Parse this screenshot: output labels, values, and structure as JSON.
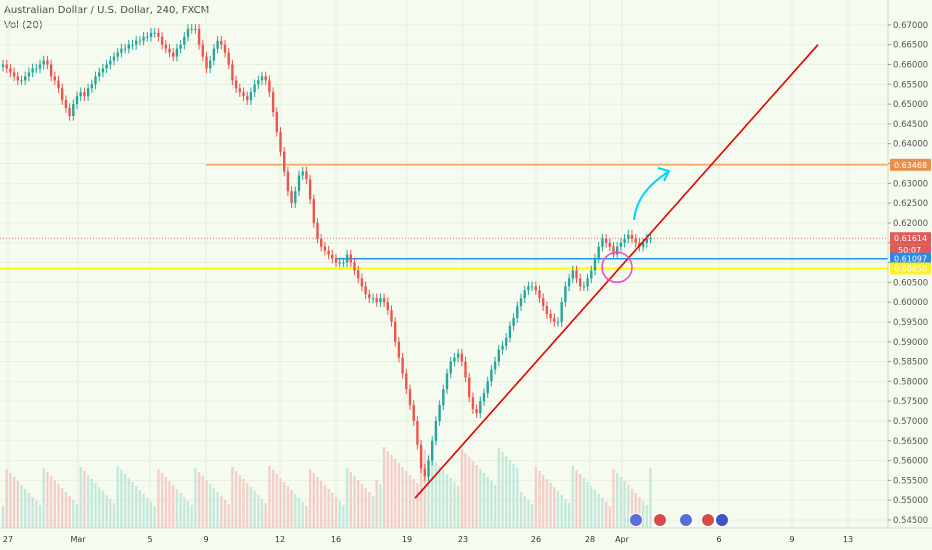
{
  "header": {
    "title": "Australian Dollar / U.S. Dollar, 240, FXCM",
    "volume_label": "Vol (20)"
  },
  "colors": {
    "background": "#f6fbf0",
    "bullish": "#26a69a",
    "bearish": "#ef5350",
    "trendline": "#e00000",
    "resistance": "#f4a460",
    "support_yellow": "#ffff00",
    "support_blue": "#2196f3",
    "current_price": "#e57373",
    "arrow": "#00d4ff",
    "circle": "#ee44cc"
  },
  "price_axis": {
    "ticks": [
      "0.67000",
      "0.66500",
      "0.66000",
      "0.65500",
      "0.65000",
      "0.64500",
      "0.64000",
      "0.63500",
      "0.63000",
      "0.62500",
      "0.62000",
      "0.61500",
      "0.61000",
      "0.60500",
      "0.60000",
      "0.59500",
      "0.59000",
      "0.58500",
      "0.58000",
      "0.57500",
      "0.57000",
      "0.56500",
      "0.56000",
      "0.55500",
      "0.55000",
      "0.54500"
    ]
  },
  "price_badges": {
    "resistance": "0.63468",
    "current_price": "0.61614",
    "countdown": "50:07",
    "blue_level": "0.61097",
    "yellow_level": "0.60850"
  },
  "time_axis": {
    "labels": [
      "27",
      "Mar",
      "5",
      "9",
      "12",
      "16",
      "19",
      "23",
      "26",
      "28",
      "Apr",
      "6",
      "9",
      "13"
    ]
  },
  "chart_data": {
    "type": "candlestick",
    "symbol": "Australian Dollar / U.S. Dollar",
    "timeframe": "240",
    "source": "FXCM",
    "ylim": [
      0.545,
      0.6725
    ],
    "horizontal_levels": [
      {
        "name": "resistance",
        "value": 0.63468
      },
      {
        "name": "current",
        "value": 0.61614
      },
      {
        "name": "blue",
        "value": 0.61097
      },
      {
        "name": "yellow",
        "value": 0.6085
      }
    ],
    "trendline": {
      "from": {
        "date": "19 Mar",
        "price": 0.5505
      },
      "to": {
        "date": "11 Apr",
        "price": 0.665
      }
    },
    "series_close": [
      0.66,
      0.659,
      0.658,
      0.657,
      0.656,
      0.656,
      0.657,
      0.658,
      0.659,
      0.659,
      0.66,
      0.661,
      0.66,
      0.657,
      0.656,
      0.654,
      0.651,
      0.649,
      0.647,
      0.65,
      0.652,
      0.653,
      0.652,
      0.654,
      0.655,
      0.657,
      0.658,
      0.659,
      0.66,
      0.661,
      0.662,
      0.663,
      0.664,
      0.664,
      0.665,
      0.665,
      0.666,
      0.666,
      0.667,
      0.667,
      0.668,
      0.668,
      0.667,
      0.665,
      0.664,
      0.663,
      0.662,
      0.664,
      0.665,
      0.667,
      0.669,
      0.669,
      0.669,
      0.665,
      0.662,
      0.659,
      0.661,
      0.664,
      0.666,
      0.665,
      0.663,
      0.66,
      0.656,
      0.654,
      0.653,
      0.652,
      0.651,
      0.653,
      0.655,
      0.656,
      0.657,
      0.656,
      0.653,
      0.648,
      0.643,
      0.638,
      0.633,
      0.628,
      0.625,
      0.628,
      0.632,
      0.633,
      0.631,
      0.626,
      0.62,
      0.616,
      0.614,
      0.613,
      0.612,
      0.611,
      0.61,
      0.61,
      0.61,
      0.612,
      0.61,
      0.608,
      0.606,
      0.604,
      0.602,
      0.601,
      0.601,
      0.6,
      0.601,
      0.6,
      0.598,
      0.595,
      0.59,
      0.586,
      0.582,
      0.578,
      0.574,
      0.57,
      0.564,
      0.558,
      0.556,
      0.56,
      0.565,
      0.57,
      0.574,
      0.578,
      0.582,
      0.585,
      0.586,
      0.587,
      0.585,
      0.581,
      0.576,
      0.573,
      0.572,
      0.575,
      0.577,
      0.58,
      0.583,
      0.585,
      0.588,
      0.589,
      0.591,
      0.594,
      0.596,
      0.599,
      0.601,
      0.603,
      0.604,
      0.604,
      0.603,
      0.601,
      0.599,
      0.597,
      0.596,
      0.595,
      0.595,
      0.6,
      0.604,
      0.606,
      0.608,
      0.606,
      0.604,
      0.604,
      0.606,
      0.608,
      0.611,
      0.614,
      0.616,
      0.615,
      0.614,
      0.612,
      0.614,
      0.615,
      0.616,
      0.617,
      0.616,
      0.615,
      0.614,
      0.615,
      0.616,
      0.6161
    ]
  }
}
